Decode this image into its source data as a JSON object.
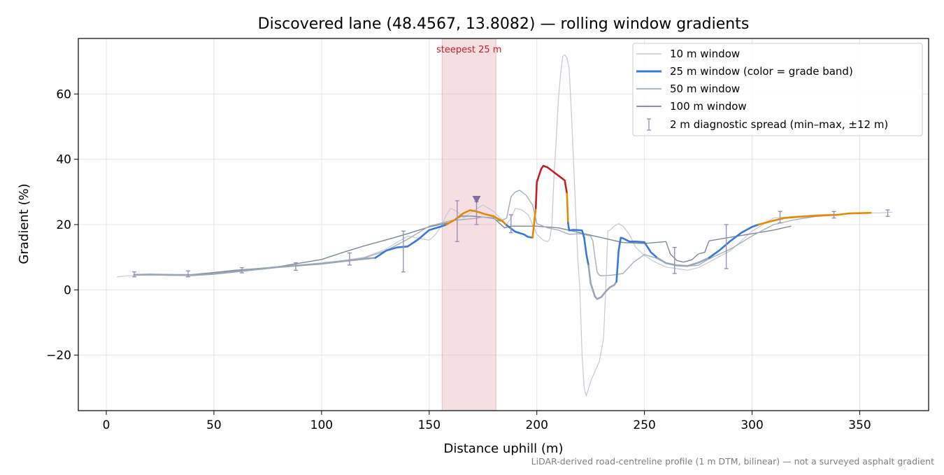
{
  "chart_data": {
    "type": "line",
    "title": "Discovered lane (48.4567, 13.8082) — rolling window gradients",
    "xlabel": "Distance uphill (m)",
    "ylabel": "Gradient (%)",
    "xlim": [
      -13,
      382
    ],
    "ylim": [
      -37,
      77
    ],
    "xticks": [
      0,
      50,
      100,
      150,
      200,
      250,
      300,
      350
    ],
    "yticks": [
      -20,
      0,
      20,
      40,
      60
    ],
    "xtick_labels": [
      "0",
      "50",
      "100",
      "150",
      "200",
      "250",
      "300",
      "350"
    ],
    "ytick_labels": [
      "−20",
      "0",
      "20",
      "40",
      "60"
    ],
    "grid": true,
    "legend_position": "top-right",
    "footnote": "LiDAR-derived road-centreline profile (1 m DTM, bilinear) — not a surveyed asphalt gradient",
    "highlight": {
      "x_from": 156,
      "x_to": 181,
      "label": "steepest 25 m",
      "color": "#e3a3ad"
    },
    "peak_marker": {
      "x": 172,
      "y": 27.5
    },
    "grade_band_colors": {
      "low": "#3a78d4",
      "mid": "#e08b00",
      "high": "#c0202a",
      "flat": "#9aa6b4"
    },
    "series": [
      {
        "name": "10 m window",
        "color": "#c3cad4",
        "width": 1.2,
        "x": [
          5,
          10,
          15,
          20,
          30,
          40,
          50,
          60,
          70,
          80,
          90,
          100,
          110,
          120,
          130,
          140,
          145,
          150,
          153,
          156,
          158,
          160,
          163,
          166,
          170,
          175,
          180,
          183,
          186,
          188,
          190,
          193,
          196,
          200,
          203,
          205,
          206,
          207,
          208,
          209,
          210,
          211,
          212,
          213,
          214,
          215,
          216,
          217,
          218,
          219,
          220,
          221,
          222,
          223,
          225,
          227,
          229,
          231,
          232,
          233,
          234,
          236,
          238,
          240,
          243,
          246,
          250,
          255,
          260,
          265,
          270,
          275,
          280,
          290,
          300,
          310,
          320,
          330,
          340,
          350,
          360,
          365
        ],
        "y": [
          4,
          4.3,
          4.5,
          4.6,
          4.4,
          4.5,
          5,
          5.5,
          6.3,
          7,
          7.6,
          8.3,
          9,
          10,
          12.5,
          16.5,
          15.8,
          15.2,
          17,
          20,
          23,
          25,
          24,
          22,
          24,
          26,
          24,
          22,
          20,
          22,
          25,
          24.5,
          23,
          17,
          15.2,
          14.8,
          15.5,
          20,
          35,
          46,
          58,
          66,
          71.5,
          72,
          71,
          68,
          55,
          40,
          25,
          10,
          0,
          -20,
          -30,
          -32.5,
          -28,
          -25,
          -22,
          -15,
          0,
          18,
          18.3,
          19.5,
          20.3,
          19.5,
          17,
          13,
          10.5,
          8.5,
          7,
          6.5,
          6,
          6.8,
          8.5,
          12,
          18,
          22,
          22.5,
          23,
          23.2,
          23.5,
          23.6,
          23.8
        ]
      },
      {
        "name": "25 m window (color = grade band)",
        "color": "#3a78d4",
        "width": 2.6,
        "segments": [
          {
            "band": "flat",
            "x": [
              13,
              20,
              30,
              40,
              50,
              60,
              70,
              80,
              90,
              100,
              110,
              120,
              125
            ],
            "y": [
              4.6,
              4.7,
              4.6,
              4.5,
              4.9,
              5.6,
              6.3,
              7,
              7.5,
              8,
              8.8,
              9.5,
              9.8
            ]
          },
          {
            "band": "low",
            "x": [
              125,
              130,
              135,
              140,
              145,
              150,
              155,
              158
            ],
            "y": [
              9.8,
              12,
              13,
              13.3,
              15.5,
              18.3,
              19.3,
              20
            ]
          },
          {
            "band": "mid",
            "x": [
              158,
              162,
              166,
              169,
              172,
              176,
              180,
              184,
              186
            ],
            "y": [
              20,
              21.5,
              23.5,
              24.4,
              24,
              23.2,
              22.5,
              21,
              19.8
            ]
          },
          {
            "band": "low",
            "x": [
              186,
              190,
              194,
              196,
              198
            ],
            "y": [
              19.8,
              17.8,
              17,
              16.2,
              16
            ]
          },
          {
            "band": "mid",
            "x": [
              198,
              199.5
            ],
            "y": [
              16,
              25
            ]
          },
          {
            "band": "high",
            "x": [
              199.5,
              200,
              202,
              203,
              205,
              207,
              209,
              211,
              213,
              214
            ],
            "y": [
              25,
              33,
              37,
              38,
              37.5,
              36.5,
              35.5,
              34.5,
              33.5,
              29.5
            ]
          },
          {
            "band": "mid",
            "x": [
              214,
              214.5
            ],
            "y": [
              29.5,
              20.5
            ]
          },
          {
            "band": "low",
            "x": [
              214.5,
              215,
              217,
              219,
              221,
              222
            ],
            "y": [
              20.5,
              18.2,
              18.4,
              18.3,
              18.2,
              16
            ]
          },
          {
            "band": "low",
            "x": [
              222,
              223,
              224
            ],
            "y": [
              16,
              11,
              7.5
            ]
          },
          {
            "band": "flat",
            "x": [
              224,
              225,
              227,
              228,
              230,
              232,
              234,
              236,
              237
            ],
            "y": [
              7.5,
              2,
              -2,
              -2.8,
              -2.2,
              -0.5,
              0.8,
              1.5,
              2.5
            ]
          },
          {
            "band": "low",
            "x": [
              237,
              238,
              239,
              240,
              243,
              246,
              250,
              253,
              256
            ],
            "y": [
              2.5,
              12,
              16,
              15.8,
              14.8,
              14.8,
              14.6,
              11.5,
              9.8
            ]
          },
          {
            "band": "flat",
            "x": [
              256,
              260,
              265,
              270,
              275,
              280
            ],
            "y": [
              9.8,
              8.2,
              7.5,
              7.3,
              8.3,
              9.8
            ]
          },
          {
            "band": "low",
            "x": [
              280,
              285,
              290,
              295,
              300,
              303
            ],
            "y": [
              9.8,
              12.2,
              15,
              17.5,
              19.3,
              20
            ]
          },
          {
            "band": "mid",
            "x": [
              303,
              310,
              315,
              320,
              330,
              340,
              345,
              350,
              355
            ],
            "y": [
              20,
              21.2,
              22,
              22.3,
              22.7,
              23,
              23.4,
              23.5,
              23.6
            ]
          }
        ]
      },
      {
        "name": "50 m window",
        "color": "#a4aebb",
        "width": 1.4,
        "x": [
          13,
          20,
          30,
          40,
          50,
          60,
          70,
          80,
          90,
          100,
          110,
          120,
          130,
          140,
          150,
          160,
          165,
          170,
          175,
          180,
          183,
          186,
          188,
          190,
          192,
          195,
          198,
          200,
          205,
          210,
          215,
          220,
          225,
          226,
          227,
          228,
          229,
          230,
          232,
          235,
          240,
          245,
          250,
          255,
          260,
          265,
          270,
          275,
          280,
          290,
          300,
          310,
          320,
          330,
          335
        ],
        "y": [
          4.6,
          4.8,
          4.5,
          4.6,
          5,
          5.7,
          6.3,
          7.1,
          7.5,
          8,
          8.7,
          9.8,
          12,
          15.5,
          19.5,
          21.2,
          21.5,
          21.8,
          22.3,
          21.8,
          21,
          22,
          28.5,
          30,
          30.5,
          29,
          26,
          20.3,
          19,
          18.3,
          17,
          17.2,
          16.5,
          15,
          10,
          5.5,
          4.5,
          4.3,
          4.4,
          4.5,
          5,
          8.5,
          10.8,
          9.8,
          8.3,
          7.5,
          7.3,
          7.5,
          9.5,
          12.5,
          16.5,
          20,
          21.5,
          22.5,
          22.8
        ]
      },
      {
        "name": "100 m window",
        "color": "#7d8796",
        "width": 1.4,
        "x": [
          13,
          20,
          30,
          40,
          50,
          60,
          70,
          80,
          90,
          100,
          110,
          120,
          130,
          140,
          150,
          160,
          165,
          170,
          180,
          185,
          188,
          200,
          210,
          220,
          230,
          240,
          250,
          260,
          262,
          265,
          268,
          272,
          275,
          278,
          280,
          300,
          310,
          318
        ],
        "y": [
          4.6,
          4.7,
          4.6,
          4.7,
          5.3,
          6,
          6.5,
          7.1,
          8.2,
          9.3,
          11.5,
          13.5,
          15.3,
          17.2,
          19.3,
          20.7,
          22.6,
          22.6,
          22,
          19,
          19.5,
          19.5,
          19,
          17.5,
          16,
          14.5,
          14.2,
          14.8,
          11,
          9,
          8.5,
          9.2,
          11,
          11.5,
          15,
          17.2,
          18.3,
          19.5
        ]
      }
    ],
    "diagnostic_spread": {
      "name": "2 m diagnostic spread (min–max, ±12 m)",
      "color": "#9b8fb8",
      "points": [
        {
          "x": 13,
          "min": 4.0,
          "max": 5.5
        },
        {
          "x": 38,
          "min": 4.0,
          "max": 5.8
        },
        {
          "x": 63,
          "min": 5.2,
          "max": 6.8
        },
        {
          "x": 88,
          "min": 6.0,
          "max": 8.3
        },
        {
          "x": 113,
          "min": 7.6,
          "max": 11.3
        },
        {
          "x": 138,
          "min": 5.5,
          "max": 18.0
        },
        {
          "x": 163,
          "min": 14.8,
          "max": 27.3
        },
        {
          "x": 172,
          "min": 20.0,
          "max": 27.0
        },
        {
          "x": 188,
          "min": 17.5,
          "max": 23.0
        },
        {
          "x": 264,
          "min": 5.0,
          "max": 13.0
        },
        {
          "x": 288,
          "min": 6.5,
          "max": 20.0
        },
        {
          "x": 313,
          "min": 20.5,
          "max": 24.0
        },
        {
          "x": 338,
          "min": 22.0,
          "max": 24.0
        },
        {
          "x": 363,
          "min": 22.5,
          "max": 24.5
        }
      ]
    }
  }
}
